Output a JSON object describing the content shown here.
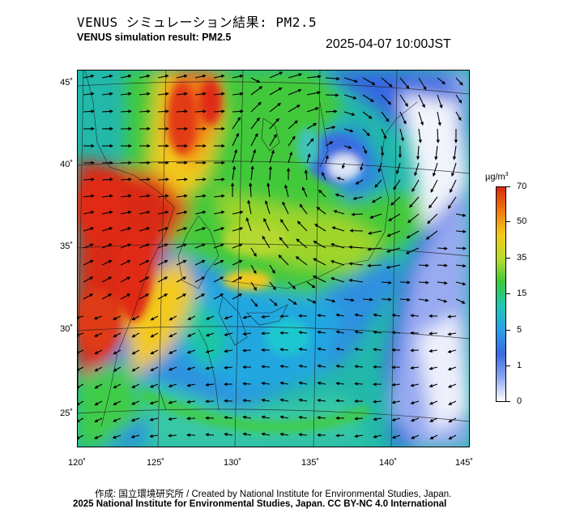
{
  "header": {
    "title_jp": "VENUS シミュレーション結果: PM2.5",
    "title_en": "VENUS simulation result: PM2.5",
    "datetime": "2025-04-07 10:00JST"
  },
  "map": {
    "lat_labels": [
      "45˚",
      "40˚",
      "35˚",
      "30˚",
      "25˚"
    ],
    "lon_labels": [
      "120˚",
      "125˚",
      "130˚",
      "135˚",
      "140˚",
      "145˚"
    ]
  },
  "colorbar": {
    "unit": "µg/m",
    "unit_exp": "3",
    "ticks": [
      "70",
      "50",
      "35",
      "15",
      "5",
      "1",
      "0"
    ],
    "colors": [
      "#d92a14",
      "#f07a0c",
      "#f2c91a",
      "#b9dc2a",
      "#3cc83c",
      "#1ec8b4",
      "#2aa0e6",
      "#3a6ae0",
      "#8aa6ee",
      "#ffffff"
    ]
  },
  "footer": {
    "credit": "作成: 国立環境研究所 / Created by National Institute for Environmental Studies, Japan.",
    "license": "2025 National Institute for Environmental Studies, Japan. CC BY-NC 4.0 International"
  }
}
